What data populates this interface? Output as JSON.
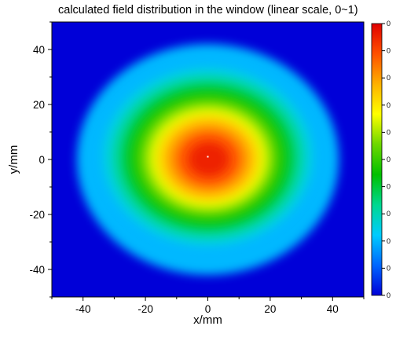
{
  "chart_data": {
    "type": "heatmap",
    "title": "calculated field distribution in the window (linear scale, 0~1)",
    "xlabel": "x/mm",
    "ylabel": "y/mm",
    "xlim": [
      -50,
      50
    ],
    "ylim": [
      -50,
      50
    ],
    "x_ticks": [
      -40,
      -20,
      0,
      20,
      40
    ],
    "x_tick_labels": [
      "-40",
      "-20",
      "0",
      "20",
      "40"
    ],
    "y_ticks": [
      40,
      20,
      0,
      -20,
      -40
    ],
    "y_tick_labels": [
      "40",
      "20",
      "0",
      "-20",
      "-40"
    ],
    "colorbar": {
      "range": [
        0,
        1
      ],
      "colors": [
        "#0000d8",
        "#0066ff",
        "#00ccff",
        "#00d890",
        "#00c000",
        "#6ed800",
        "#ffff00",
        "#ffb000",
        "#ff5000",
        "#e00000"
      ],
      "tick_labels": [
        "0",
        "0",
        "0",
        "0",
        "0",
        "0",
        "0",
        "0",
        "0",
        "0",
        "0"
      ]
    },
    "field": {
      "peak_value": 1.0,
      "peak_x": 0,
      "peak_y": 1,
      "aperture_radius": 42,
      "edge_value": 0.2,
      "background_value": 0.0,
      "halo_sigma": 19,
      "core_sigma": 11
    },
    "grid": false
  }
}
